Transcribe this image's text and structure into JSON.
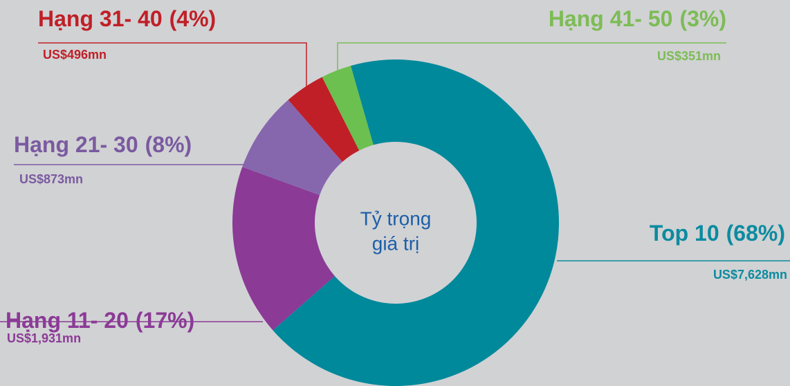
{
  "chart_data": {
    "type": "donut",
    "categories": [
      "Top 10",
      "Hạng 11- 20",
      "Hạng 21- 30",
      "Hạng 31- 40",
      "Hạng 41- 50"
    ],
    "values": [
      68,
      17,
      8,
      4,
      3
    ],
    "value_labels": [
      "(68%)",
      "(17%)",
      "(8%)",
      "(4%)",
      "(3%)"
    ],
    "amount_labels": [
      "US$7,628mn",
      "US$1,931mn",
      "US$873mn",
      "US$496mn",
      "US$351mn"
    ],
    "colors": [
      "#00899b",
      "#8b3a96",
      "#8667ae",
      "#c01f27",
      "#6cc04f"
    ],
    "label_colors": [
      "#0b8ba0",
      "#8b3a96",
      "#7a5aa0",
      "#c01f27",
      "#7cbc55"
    ],
    "center_label": [
      "Tỷ trọng",
      "giá trị"
    ]
  }
}
